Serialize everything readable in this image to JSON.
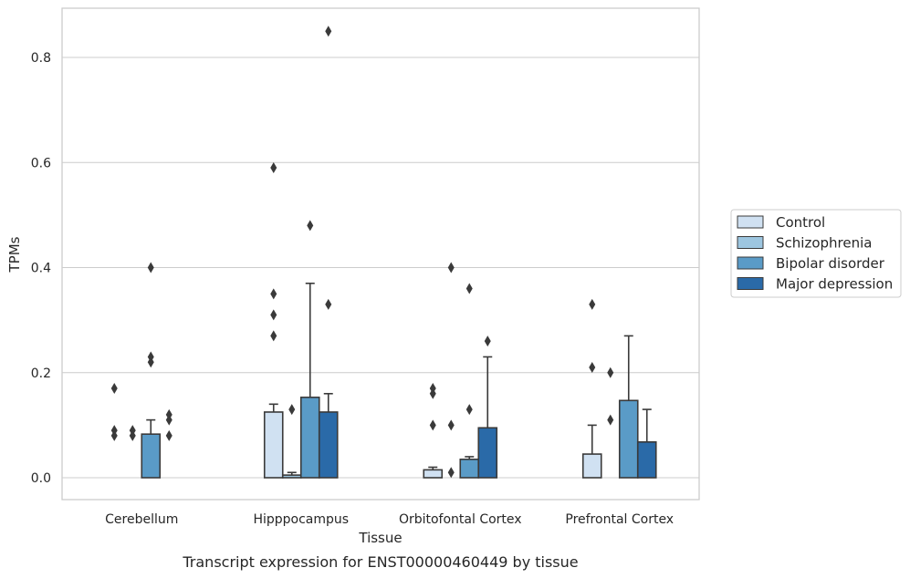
{
  "caption": "Transcript expression for ENST00000460449 by tissue",
  "chart_data": {
    "type": "bar",
    "xlabel": "Tissue",
    "ylabel": "TPMs",
    "ylim": [
      -0.04,
      0.89
    ],
    "yticks": [
      0.0,
      0.2,
      0.4,
      0.6,
      0.8
    ],
    "ytick_labels": [
      "0.0",
      "0.2",
      "0.4",
      "0.6",
      "0.8"
    ],
    "grid": "horizontal",
    "legend_position": "right",
    "categories": [
      "Cerebellum",
      "Hipppocampus",
      "Orbitofontal Cortex",
      "Prefrontal Cortex"
    ],
    "series": [
      {
        "name": "Control",
        "color": "#d0e1f2",
        "values": [
          0.0,
          0.125,
          0.015,
          0.045
        ],
        "error_upper": [
          null,
          0.14,
          0.02,
          0.1
        ],
        "outliers": [
          [
            0.17,
            0.09,
            0.08
          ],
          [
            0.59,
            0.35,
            0.31,
            0.27
          ],
          [
            0.17,
            0.16,
            0.1
          ],
          [
            0.33,
            0.21
          ]
        ]
      },
      {
        "name": "Schizophrenia",
        "color": "#9dc6e0",
        "values": [
          0.0,
          0.005,
          0.0,
          0.0
        ],
        "error_upper": [
          null,
          0.01,
          null,
          null
        ],
        "outliers": [
          [
            0.09,
            0.08
          ],
          [
            0.13
          ],
          [
            0.4,
            0.1,
            0.01
          ],
          [
            0.2,
            0.11
          ]
        ]
      },
      {
        "name": "Bipolar disorder",
        "color": "#5a9bc7",
        "values": [
          0.083,
          0.153,
          0.035,
          0.147
        ],
        "error_upper": [
          0.11,
          0.37,
          0.04,
          0.27
        ],
        "outliers": [
          [
            0.4,
            0.23,
            0.22
          ],
          [
            0.48
          ],
          [
            0.36,
            0.13
          ],
          []
        ]
      },
      {
        "name": "Major depression",
        "color": "#2a6aa8",
        "values": [
          0.0,
          0.125,
          0.095,
          0.068
        ],
        "error_upper": [
          null,
          0.16,
          0.23,
          0.13
        ],
        "outliers": [
          [
            0.12,
            0.11,
            0.08
          ],
          [
            0.85,
            0.33
          ],
          [
            0.26
          ],
          []
        ]
      }
    ]
  }
}
